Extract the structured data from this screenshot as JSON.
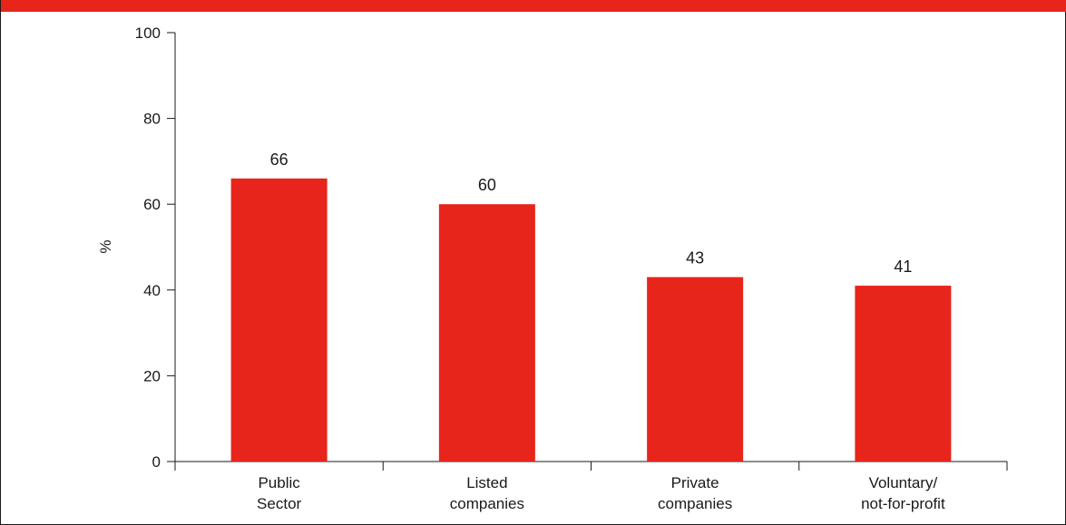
{
  "colors": {
    "bar": "#E8251B",
    "axis": "#1A1A1A",
    "header": "#E8251B"
  },
  "chart_data": {
    "type": "bar",
    "categories": [
      [
        "Public",
        "Sector"
      ],
      [
        "Listed",
        "companies"
      ],
      [
        "Private",
        "companies"
      ],
      [
        "Voluntary/",
        "not-for-profit"
      ]
    ],
    "values": [
      66,
      60,
      43,
      41
    ],
    "data_labels": [
      "66",
      "60",
      "43",
      "41"
    ],
    "ylabel": "%",
    "ylim": [
      0,
      100
    ],
    "yticks": [
      0,
      20,
      40,
      60,
      80,
      100
    ],
    "grid": false,
    "legend": "none"
  }
}
